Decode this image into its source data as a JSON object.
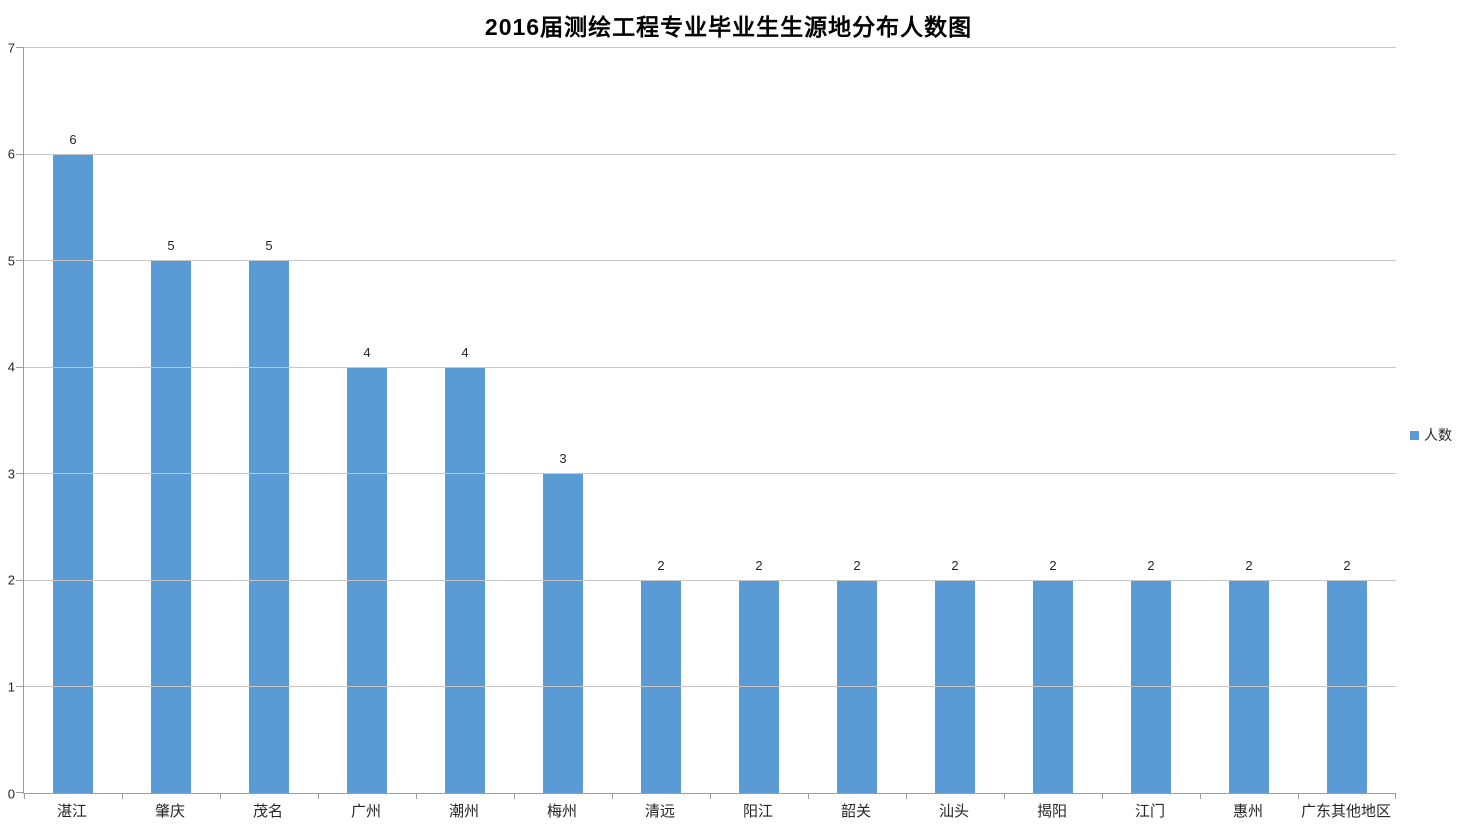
{
  "chart_data": {
    "type": "bar",
    "title": "2016届测绘工程专业毕业生生源地分布人数图",
    "categories": [
      "湛江",
      "肇庆",
      "茂名",
      "广州",
      "潮州",
      "梅州",
      "清远",
      "阳江",
      "韶关",
      "汕头",
      "揭阳",
      "江门",
      "惠州",
      "广东其他地区"
    ],
    "series": [
      {
        "name": "人数",
        "values": [
          6,
          5,
          5,
          4,
          4,
          3,
          2,
          2,
          2,
          2,
          2,
          2,
          2,
          2
        ]
      }
    ],
    "xlabel": "",
    "ylabel": "",
    "ylim": [
      0,
      7
    ],
    "yticks": [
      0,
      1,
      2,
      3,
      4,
      5,
      6,
      7
    ],
    "grid": "horizontal",
    "data_labels": true,
    "legend_position": "right-middle",
    "colors": {
      "bar": "#5b9bd5",
      "gridline": "#c6c6c6",
      "axis": "#9d9d9d",
      "label_text": "#262626",
      "title_text": "#000000",
      "background": "#ffffff"
    }
  }
}
